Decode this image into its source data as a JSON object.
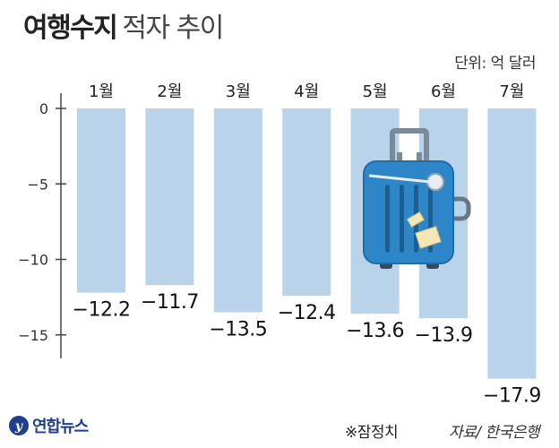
{
  "header": {
    "title_bold": "여행수지",
    "title_light": "적자 추이",
    "unit": "단위: 억 달러"
  },
  "footer": {
    "note": "※잠정치",
    "source": "자료/ 한국은행",
    "logo": "연합뉴스"
  },
  "chart_data": {
    "type": "bar",
    "categories": [
      "1월",
      "2월",
      "3월",
      "4월",
      "5월",
      "6월",
      "7월"
    ],
    "values": [
      -12.2,
      -11.7,
      -13.5,
      -12.4,
      -13.6,
      -13.9,
      -17.9
    ],
    "value_labels": [
      "−12.2",
      "−11.7",
      "−13.5",
      "−12.4",
      "−13.6",
      "−13.9",
      "−17.9"
    ],
    "y_ticks": [
      0,
      -5,
      -10,
      -15
    ],
    "y_tick_labels": [
      "0",
      "−5",
      "−10",
      "−15"
    ],
    "ylim": [
      -17.9,
      0
    ],
    "title": "여행수지 적자 추이",
    "ylabel": "",
    "xlabel": "",
    "grid": false,
    "bar_color": "#b9d3ea",
    "axis_color": "#444444"
  }
}
